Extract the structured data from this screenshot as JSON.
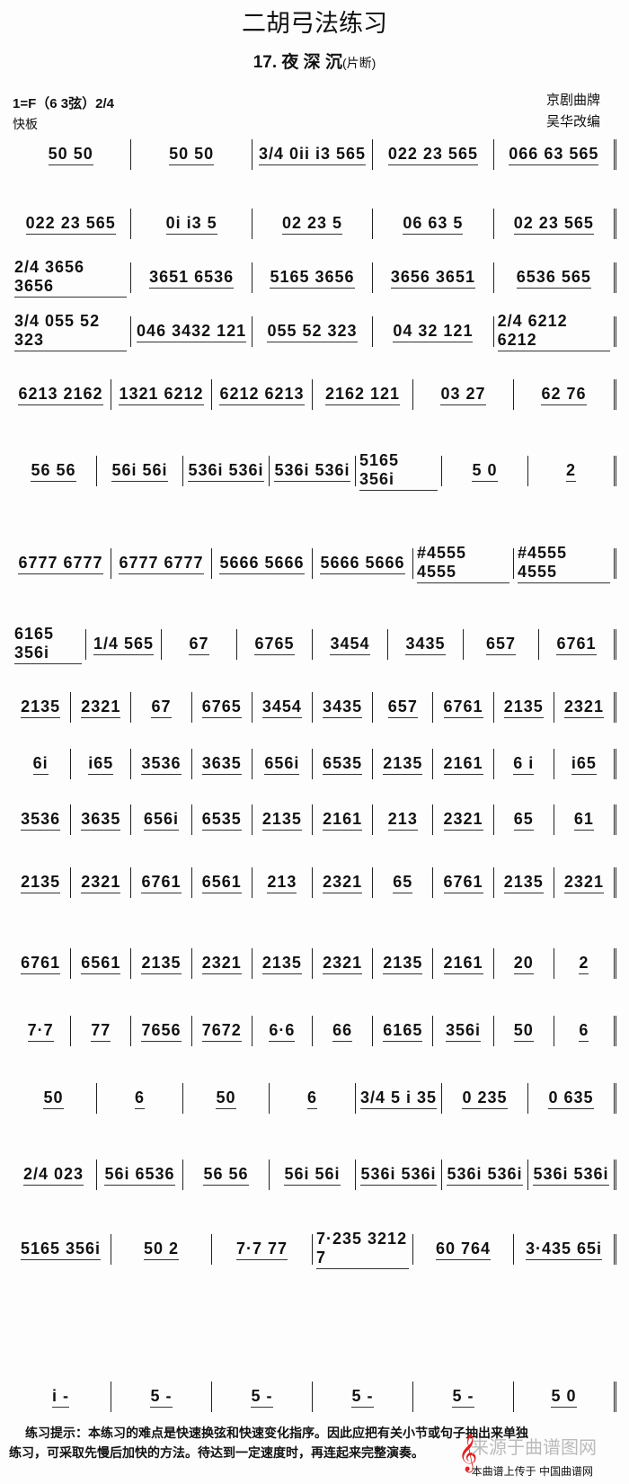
{
  "header": {
    "title": "二胡弓法练习",
    "subtitle": "17. 夜 深 沉",
    "subtitle_note": "(片断)",
    "key": "1=F（6 3弦）2/4",
    "tempo": "快板",
    "source": "京剧曲牌",
    "arranger": "吴华改编"
  },
  "rows": [
    [
      "50 50",
      "50 50",
      "3/4 0ii i3 565",
      "022 23 565",
      "066 63 565"
    ],
    [
      "022 23 565",
      "0i i3 5",
      "02 23 5",
      "06 63 5",
      "02 23 565"
    ],
    [
      "2/4 3656 3656",
      "3651 6536",
      "5165 3656",
      "3656 3651",
      "6536 565"
    ],
    [
      "3/4 055 52 323",
      "046 3432 121",
      "055 52 323",
      "04 32 121",
      "2/4 6212 6212"
    ],
    [
      "6213 2162",
      "1321 6212",
      "6212 6213",
      "2162 121",
      "03 27",
      "62 76"
    ],
    [
      "56 56",
      "56i 56i",
      "536i 536i",
      "536i 536i",
      "5165 356i",
      "5 0",
      "2"
    ],
    [
      "6777 6777",
      "6777 6777",
      "5666 5666",
      "5666 5666",
      "#4555 4555",
      "#4555 4555"
    ],
    [
      "6165 356i",
      "1/4 565",
      "67",
      "6765",
      "3454",
      "3435",
      "657",
      "6761"
    ],
    [
      "2135",
      "2321",
      "67",
      "6765",
      "3454",
      "3435",
      "657",
      "6761",
      "2135",
      "2321"
    ],
    [
      "6i",
      "i65",
      "3536",
      "3635",
      "656i",
      "6535",
      "2135",
      "2161",
      "6 i",
      "i65"
    ],
    [
      "3536",
      "3635",
      "656i",
      "6535",
      "2135",
      "2161",
      "213",
      "2321",
      "65",
      "61"
    ],
    [
      "2135",
      "2321",
      "6761",
      "6561",
      "213",
      "2321",
      "65",
      "6761",
      "2135",
      "2321"
    ],
    [
      "6761",
      "6561",
      "2135",
      "2321",
      "2135",
      "2321",
      "2135",
      "2161",
      "20",
      "2"
    ],
    [
      "7·7",
      "77",
      "7656",
      "7672",
      "6·6",
      "66",
      "6165",
      "356i",
      "50",
      "6"
    ],
    [
      "50",
      "6",
      "50",
      "6",
      "3/4 5 i 35",
      "0 235",
      "0 635"
    ],
    [
      "2/4 023",
      "56i 6536",
      "56 56",
      "56i 56i",
      "536i 536i",
      "536i 536i",
      "536i 536i"
    ],
    [
      "5165 356i",
      "50 2",
      "7·7 77",
      "7·235 3212 7",
      "60 764",
      "3·435 65i"
    ],
    [
      "i  -",
      "5  -",
      "5  -",
      "5  -",
      "5  -",
      "5  0"
    ]
  ],
  "footer": {
    "tip": "练习提示：本练习的难点是快速换弦和快速变化指序。因此应把有关小节或句子抽出来单独",
    "tip2": "练习，可采取先慢后加快的方法。待达到一定速度时，再连起来完整演奏。",
    "watermark": "来源于曲谱图网",
    "credit": "本曲谱上传于 中国曲谱网"
  }
}
